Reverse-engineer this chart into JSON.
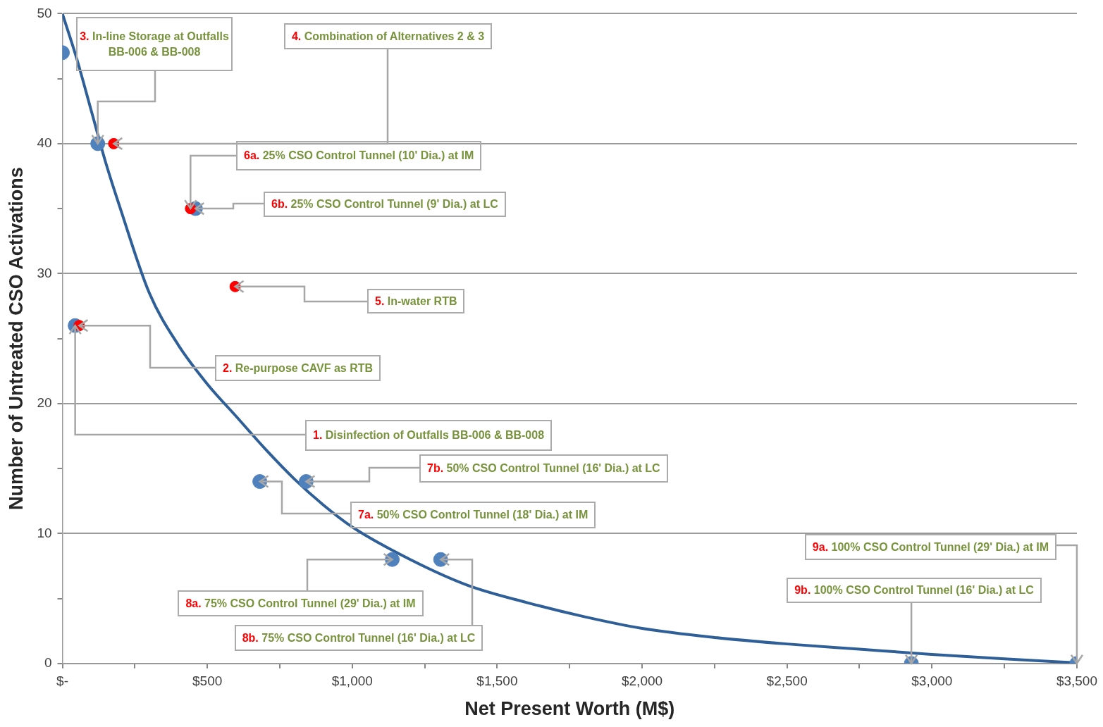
{
  "chart_data": {
    "type": "scatter",
    "xlabel": "Net Present Worth (M$)",
    "ylabel": "Number of Untreated CSO Activations",
    "xlim": [
      0,
      3500
    ],
    "ylim": [
      0,
      50
    ],
    "xticks": [
      {
        "value": 0,
        "label": "$-"
      },
      {
        "value": 250,
        "label": null
      },
      {
        "value": 500,
        "label": "$500"
      },
      {
        "value": 750,
        "label": null
      },
      {
        "value": 1000,
        "label": "$1,000"
      },
      {
        "value": 1250,
        "label": null
      },
      {
        "value": 1500,
        "label": "$1,500"
      },
      {
        "value": 1750,
        "label": null
      },
      {
        "value": 2000,
        "label": "$2,000"
      },
      {
        "value": 2250,
        "label": null
      },
      {
        "value": 2500,
        "label": "$2,500"
      },
      {
        "value": 2750,
        "label": null
      },
      {
        "value": 3000,
        "label": "$3,000"
      },
      {
        "value": 3250,
        "label": null
      },
      {
        "value": 3500,
        "label": "$3,500"
      }
    ],
    "yticks": [
      0,
      {
        "value": 5,
        "label": null
      },
      10,
      {
        "value": 15,
        "label": null
      },
      20,
      {
        "value": 25,
        "label": null
      },
      30,
      {
        "value": 35,
        "label": null
      },
      40,
      {
        "value": 45,
        "label": null
      },
      50
    ],
    "grid": "y",
    "legend": false,
    "series": [
      {
        "type": "line",
        "color": "#2f5f98",
        "marker": "none",
        "x": [
          0,
          50,
          100,
          150,
          200,
          300,
          400,
          500,
          600,
          700,
          800,
          900,
          1000,
          1200,
          1400,
          1600,
          1800,
          2000,
          2250,
          2500,
          2750,
          3000,
          3250,
          3500
        ],
        "values": [
          50,
          46.5,
          42.5,
          38.5,
          35,
          28.5,
          24.5,
          21.5,
          19,
          16.5,
          14.2,
          12.2,
          10.5,
          8,
          6,
          4.7,
          3.6,
          2.7,
          2,
          1.5,
          1.1,
          0.7,
          0.35,
          0.05
        ]
      },
      {
        "type": "scatter",
        "color": "#4f81bd",
        "marker": "circle",
        "x": [
          0,
          122,
          459,
          44,
          681,
          841,
          1138,
          1305,
          2929,
          3500
        ],
        "values": [
          47,
          40,
          35,
          26,
          14,
          14,
          8,
          8,
          0,
          0
        ]
      },
      {
        "type": "scatter",
        "color": "#ff0000",
        "marker": "circle",
        "x": [
          177,
          442,
          596,
          58
        ],
        "values": [
          40,
          35,
          29,
          26
        ]
      }
    ],
    "annotations": [
      {
        "text": "1. Disinfection of Outfalls BB-006 & BB-008",
        "x": 44,
        "y": 26
      },
      {
        "text": "2. Re-purpose CAVF as RTB",
        "x": 58,
        "y": 26
      },
      {
        "text": "3. In-line Storage at Outfalls BB-006 & BB-008",
        "x": 122,
        "y": 40
      },
      {
        "text": "4. Combination of Alternatives 2 & 3",
        "x": 177,
        "y": 40
      },
      {
        "text": "5. In-water RTB",
        "x": 596,
        "y": 29
      },
      {
        "text": "6a. 25% CSO Control Tunnel (10' Dia.) at IM",
        "x": 442,
        "y": 35
      },
      {
        "text": "6b. 25% CSO Control Tunnel (9' Dia.) at LC",
        "x": 459,
        "y": 35
      },
      {
        "text": "7a. 50% CSO Control Tunnel (18' Dia.) at IM",
        "x": 681,
        "y": 14
      },
      {
        "text": "7b. 50% CSO Control Tunnel (16' Dia.) at LC",
        "x": 841,
        "y": 14
      },
      {
        "text": "8a. 75% CSO Control Tunnel (29' Dia.) at IM",
        "x": 1138,
        "y": 8
      },
      {
        "text": "8b. 75% CSO Control Tunnel (16' Dia.) at LC",
        "x": 1305,
        "y": 8
      },
      {
        "text": "9a. 100% CSO Control Tunnel (29' Dia.) at IM",
        "x": 3500,
        "y": 0
      },
      {
        "text": "9b. 100% CSO Control Tunnel (16' Dia.) at LC",
        "x": 2929,
        "y": 0
      }
    ]
  }
}
